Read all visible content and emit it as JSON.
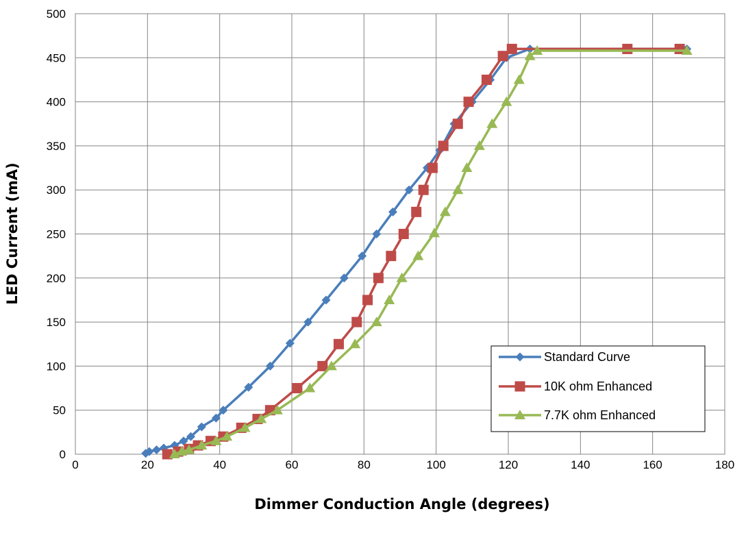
{
  "chart_data": {
    "type": "line",
    "title": "",
    "xlabel": "Dimmer Conduction Angle (degrees)",
    "ylabel": "LED Current (mA)",
    "xlim": [
      0,
      180
    ],
    "ylim": [
      0,
      500
    ],
    "x_ticks": [
      0,
      20,
      40,
      60,
      80,
      100,
      120,
      140,
      160,
      180
    ],
    "y_ticks": [
      0,
      50,
      100,
      150,
      200,
      250,
      300,
      350,
      400,
      450,
      500
    ],
    "grid": true,
    "legend_position": "bottom-right",
    "series": [
      {
        "name": "Standard Curve",
        "color": "#4a7ebb",
        "marker": "diamond",
        "points": [
          [
            19.5,
            1
          ],
          [
            20.5,
            3
          ],
          [
            22.5,
            5
          ],
          [
            24.5,
            7
          ],
          [
            27.5,
            10
          ],
          [
            30,
            15
          ],
          [
            32,
            20
          ],
          [
            35,
            31
          ],
          [
            39,
            41
          ],
          [
            41,
            50
          ],
          [
            48,
            76
          ],
          [
            54,
            100
          ],
          [
            59.5,
            126
          ],
          [
            64.5,
            150
          ],
          [
            69.5,
            175
          ],
          [
            74.5,
            200
          ],
          [
            79.5,
            225
          ],
          [
            83.5,
            250
          ],
          [
            88,
            275
          ],
          [
            92.5,
            300
          ],
          [
            97.5,
            325
          ],
          [
            101,
            345
          ],
          [
            105,
            375
          ],
          [
            110,
            400
          ],
          [
            115,
            425
          ],
          [
            119.5,
            450
          ],
          [
            126,
            460
          ],
          [
            169.5,
            460
          ]
        ]
      },
      {
        "name": "10K ohm Enhanced",
        "color": "#be4b48",
        "marker": "square",
        "points": [
          [
            25.5,
            0
          ],
          [
            28.5,
            3
          ],
          [
            31.5,
            6
          ],
          [
            34,
            10
          ],
          [
            37.5,
            15
          ],
          [
            41,
            20
          ],
          [
            46,
            30
          ],
          [
            50.5,
            40
          ],
          [
            54,
            50
          ],
          [
            61.5,
            75
          ],
          [
            68.5,
            100
          ],
          [
            73,
            125
          ],
          [
            78,
            150
          ],
          [
            81,
            175
          ],
          [
            84,
            200
          ],
          [
            87.5,
            225
          ],
          [
            91,
            250
          ],
          [
            94.5,
            275
          ],
          [
            96.5,
            300
          ],
          [
            99,
            325
          ],
          [
            102,
            350
          ],
          [
            106,
            375
          ],
          [
            109,
            400
          ],
          [
            114,
            425
          ],
          [
            118.5,
            452
          ],
          [
            121,
            460
          ],
          [
            153,
            460
          ],
          [
            167.5,
            460
          ]
        ]
      },
      {
        "name": "7.7K ohm Enhanced",
        "color": "#98b954",
        "marker": "triangle",
        "points": [
          [
            27.5,
            0
          ],
          [
            29.5,
            3
          ],
          [
            31.5,
            5
          ],
          [
            35,
            10
          ],
          [
            39,
            15
          ],
          [
            42,
            20
          ],
          [
            47,
            30
          ],
          [
            51.5,
            40
          ],
          [
            56,
            50
          ],
          [
            65,
            75
          ],
          [
            71,
            100
          ],
          [
            77.5,
            125
          ],
          [
            83.5,
            150
          ],
          [
            87,
            175
          ],
          [
            90.5,
            200
          ],
          [
            95,
            225
          ],
          [
            99.5,
            251
          ],
          [
            102.5,
            275
          ],
          [
            106,
            300
          ],
          [
            108.5,
            325
          ],
          [
            112,
            350
          ],
          [
            115.5,
            375
          ],
          [
            119.5,
            400
          ],
          [
            123,
            425
          ],
          [
            126,
            452
          ],
          [
            128,
            458
          ],
          [
            169.5,
            458
          ]
        ]
      }
    ]
  }
}
